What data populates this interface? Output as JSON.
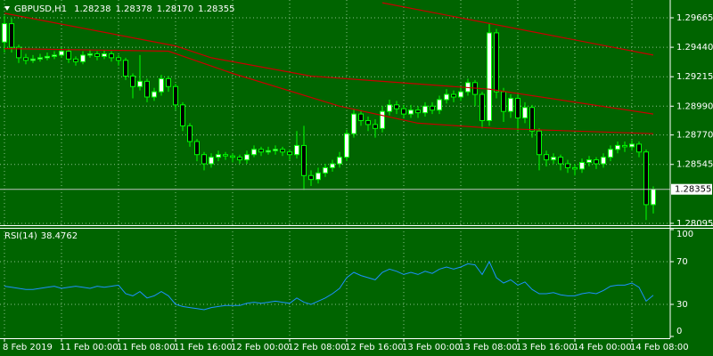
{
  "chart_data": [
    {
      "type": "candlestick",
      "symbol": "GBPUSD,H1",
      "digits": 5,
      "categories": [
        "8 Feb 2019",
        null,
        null,
        null,
        null,
        null,
        null,
        null,
        "11 Feb 00:00",
        null,
        null,
        null,
        null,
        null,
        null,
        null,
        "11 Feb 08:00",
        null,
        null,
        null,
        null,
        null,
        null,
        null,
        "11 Feb 16:00",
        null,
        null,
        null,
        null,
        null,
        null,
        null,
        "12 Feb 00:00",
        null,
        null,
        null,
        null,
        null,
        null,
        null,
        "12 Feb 08:00",
        null,
        null,
        null,
        null,
        null,
        null,
        null,
        "12 Feb 16:00",
        null,
        null,
        null,
        null,
        null,
        null,
        null,
        "13 Feb 00:00",
        null,
        null,
        null,
        null,
        null,
        null,
        null,
        "13 Feb 08:00",
        null,
        null,
        null,
        null,
        null,
        null,
        null,
        "13 Feb 16:00",
        null,
        null,
        null,
        null,
        null,
        null,
        null,
        "14 Feb 00:00",
        null,
        null,
        null,
        null,
        null,
        null,
        null,
        "14 Feb 08:00",
        null,
        null,
        null
      ],
      "open": [
        1.2948,
        1.2962,
        1.2944,
        1.2936,
        1.2934,
        1.2935,
        1.2936,
        1.2937,
        1.2938,
        1.2941,
        1.2935,
        1.2933,
        1.2938,
        1.2939,
        1.2937,
        1.2939,
        1.2936,
        1.2934,
        1.2922,
        1.2914,
        1.2918,
        1.2906,
        1.291,
        1.292,
        1.2914,
        1.29,
        1.2884,
        1.2872,
        1.2862,
        1.2855,
        1.286,
        1.2862,
        1.2861,
        1.286,
        1.2858,
        1.2862,
        1.2866,
        1.2864,
        1.2865,
        1.2866,
        1.2864,
        1.2862,
        1.2869,
        1.2846,
        1.2843,
        1.2848,
        1.2852,
        1.2855,
        1.286,
        1.2878,
        1.2893,
        1.2888,
        1.2885,
        1.2882,
        1.2895,
        1.29,
        1.2897,
        1.2893,
        1.2896,
        1.2894,
        1.2899,
        1.2896,
        1.2904,
        1.2908,
        1.2906,
        1.291,
        1.2917,
        1.2908,
        1.2888,
        1.2955,
        1.291,
        1.2895,
        1.2905,
        1.289,
        1.2898,
        1.288,
        1.2862,
        1.2858,
        1.286,
        1.2855,
        1.2852,
        1.2851,
        1.2856,
        1.2858,
        1.2855,
        1.286,
        1.2866,
        1.2869,
        1.2868,
        1.287,
        1.2864,
        1.28238
      ],
      "high": [
        1.2968,
        1.2966,
        1.2946,
        1.2939,
        1.2938,
        1.2939,
        1.294,
        1.2941,
        1.2944,
        1.2943,
        1.2937,
        1.2941,
        1.2942,
        1.2941,
        1.2942,
        1.2941,
        1.2938,
        1.2936,
        1.2924,
        1.2938,
        1.292,
        1.2913,
        1.2923,
        1.2922,
        1.2916,
        1.2902,
        1.2886,
        1.2874,
        1.2864,
        1.2863,
        1.2865,
        1.2864,
        1.2863,
        1.2862,
        1.2865,
        1.2869,
        1.2868,
        1.2868,
        1.2869,
        1.2868,
        1.2866,
        1.288,
        1.2884,
        1.285,
        1.2852,
        1.2855,
        1.2858,
        1.2864,
        1.2881,
        1.2897,
        1.2896,
        1.2891,
        1.2889,
        1.2899,
        1.2904,
        1.2903,
        1.29,
        1.29,
        1.2899,
        1.2902,
        1.2902,
        1.2907,
        1.2912,
        1.2911,
        1.2914,
        1.292,
        1.2919,
        1.291,
        1.2962,
        1.2958,
        1.2913,
        1.2908,
        1.2908,
        1.2902,
        1.29,
        1.2882,
        1.2865,
        1.2863,
        1.2862,
        1.2858,
        1.2855,
        1.2859,
        1.2861,
        1.286,
        1.2863,
        1.2869,
        1.2872,
        1.2872,
        1.2873,
        1.2872,
        1.2866,
        1.28378
      ],
      "low": [
        1.294,
        1.294,
        1.2932,
        1.2931,
        1.2932,
        1.2933,
        1.2934,
        1.2935,
        1.2936,
        1.2932,
        1.293,
        1.2931,
        1.2936,
        1.2934,
        1.2935,
        1.2933,
        1.293,
        1.2919,
        1.2905,
        1.2911,
        1.2902,
        1.2903,
        1.2907,
        1.291,
        1.2896,
        1.288,
        1.2868,
        1.2857,
        1.285,
        1.2852,
        1.2857,
        1.2858,
        1.2856,
        1.2855,
        1.2855,
        1.286,
        1.2861,
        1.2862,
        1.2862,
        1.2861,
        1.2858,
        1.2859,
        1.2835,
        1.2838,
        1.284,
        1.2845,
        1.2849,
        1.2852,
        1.2857,
        1.2875,
        1.2884,
        1.288,
        1.2875,
        1.2879,
        1.2892,
        1.2893,
        1.289,
        1.289,
        1.289,
        1.2891,
        1.2893,
        1.2893,
        1.2901,
        1.2902,
        1.2903,
        1.2907,
        1.2899,
        1.2882,
        1.2884,
        1.2905,
        1.2887,
        1.289,
        1.288,
        1.2886,
        1.2875,
        1.285,
        1.2853,
        1.2855,
        1.285,
        1.2848,
        1.2846,
        1.2848,
        1.2853,
        1.2851,
        1.2852,
        1.2857,
        1.2863,
        1.2864,
        1.2865,
        1.286,
        1.2812,
        1.2817
      ],
      "close": [
        1.2962,
        1.2944,
        1.2936,
        1.2934,
        1.2935,
        1.2936,
        1.2937,
        1.2938,
        1.2941,
        1.2935,
        1.2933,
        1.2938,
        1.2939,
        1.2937,
        1.2939,
        1.2936,
        1.2934,
        1.2922,
        1.2914,
        1.2918,
        1.2906,
        1.291,
        1.292,
        1.2914,
        1.29,
        1.2884,
        1.2872,
        1.2862,
        1.2855,
        1.286,
        1.2862,
        1.2861,
        1.286,
        1.2858,
        1.2862,
        1.2866,
        1.2864,
        1.2865,
        1.2866,
        1.2864,
        1.2862,
        1.2869,
        1.2846,
        1.2843,
        1.2848,
        1.2852,
        1.2855,
        1.286,
        1.2878,
        1.2893,
        1.2888,
        1.2885,
        1.2882,
        1.2895,
        1.29,
        1.2897,
        1.2893,
        1.2896,
        1.2894,
        1.2899,
        1.2896,
        1.2904,
        1.2908,
        1.2906,
        1.291,
        1.2917,
        1.2908,
        1.2888,
        1.2955,
        1.291,
        1.2895,
        1.2905,
        1.289,
        1.2898,
        1.288,
        1.2862,
        1.2858,
        1.286,
        1.2855,
        1.2852,
        1.2851,
        1.2856,
        1.2858,
        1.2855,
        1.286,
        1.2866,
        1.2869,
        1.2868,
        1.287,
        1.2864,
        1.28238,
        1.28355
      ],
      "overlays": [
        {
          "color": "#c80000",
          "x": [
            53,
            91
          ],
          "values": [
            1.2978,
            1.2938
          ]
        },
        {
          "color": "#c80000",
          "x": [
            0,
            24,
            29,
            43,
            68,
            91
          ],
          "values": [
            1.297,
            1.2945,
            1.2936,
            1.2922,
            1.2912,
            1.2893
          ]
        },
        {
          "color": "#c80000",
          "x": [
            0,
            23,
            32,
            47,
            58,
            69,
            91
          ],
          "values": [
            1.2943,
            1.2941,
            1.2924,
            1.2899,
            1.2886,
            1.2882,
            1.2878
          ]
        }
      ],
      "colors": {
        "bull": "#ffffff",
        "bear": "#000000",
        "wick": "#00ff00"
      },
      "ylim": [
        1.28081,
        1.29801
      ],
      "yticks": [
        1.28095,
        1.28545,
        {
          "value": 1.2877,
          "label": "1.28770"
        },
        {
          "value": 1.2899,
          "label": "1.28990"
        },
        1.29215,
        {
          "value": 1.2944,
          "label": "1.29440"
        },
        1.29665
      ],
      "grid": true
    },
    {
      "type": "line",
      "title": "RSI(14)",
      "series": [
        {
          "color": "#1e90ff",
          "values": [
            47,
            46,
            45,
            44,
            44,
            45,
            46,
            47,
            45,
            46,
            47,
            46,
            45,
            47,
            46,
            47,
            48,
            40,
            38,
            42,
            36,
            38,
            42,
            38,
            30,
            28,
            27,
            26,
            25,
            27,
            28,
            29,
            29,
            29,
            31,
            32,
            31,
            32,
            33,
            32,
            31,
            36,
            32,
            30,
            33,
            36,
            40,
            45,
            55,
            60,
            57,
            55,
            53,
            60,
            63,
            61,
            58,
            60,
            58,
            61,
            59,
            63,
            65,
            63,
            65,
            68,
            67,
            58,
            70,
            55,
            50,
            53,
            48,
            51,
            44,
            40,
            40,
            41,
            39,
            38,
            38,
            40,
            41,
            40,
            43,
            47,
            48,
            48,
            50,
            46,
            33,
            38.4762
          ]
        }
      ],
      "ylim": [
        0,
        100
      ],
      "yticks": [
        0,
        30,
        70,
        100
      ],
      "grid": true
    }
  ]
}
